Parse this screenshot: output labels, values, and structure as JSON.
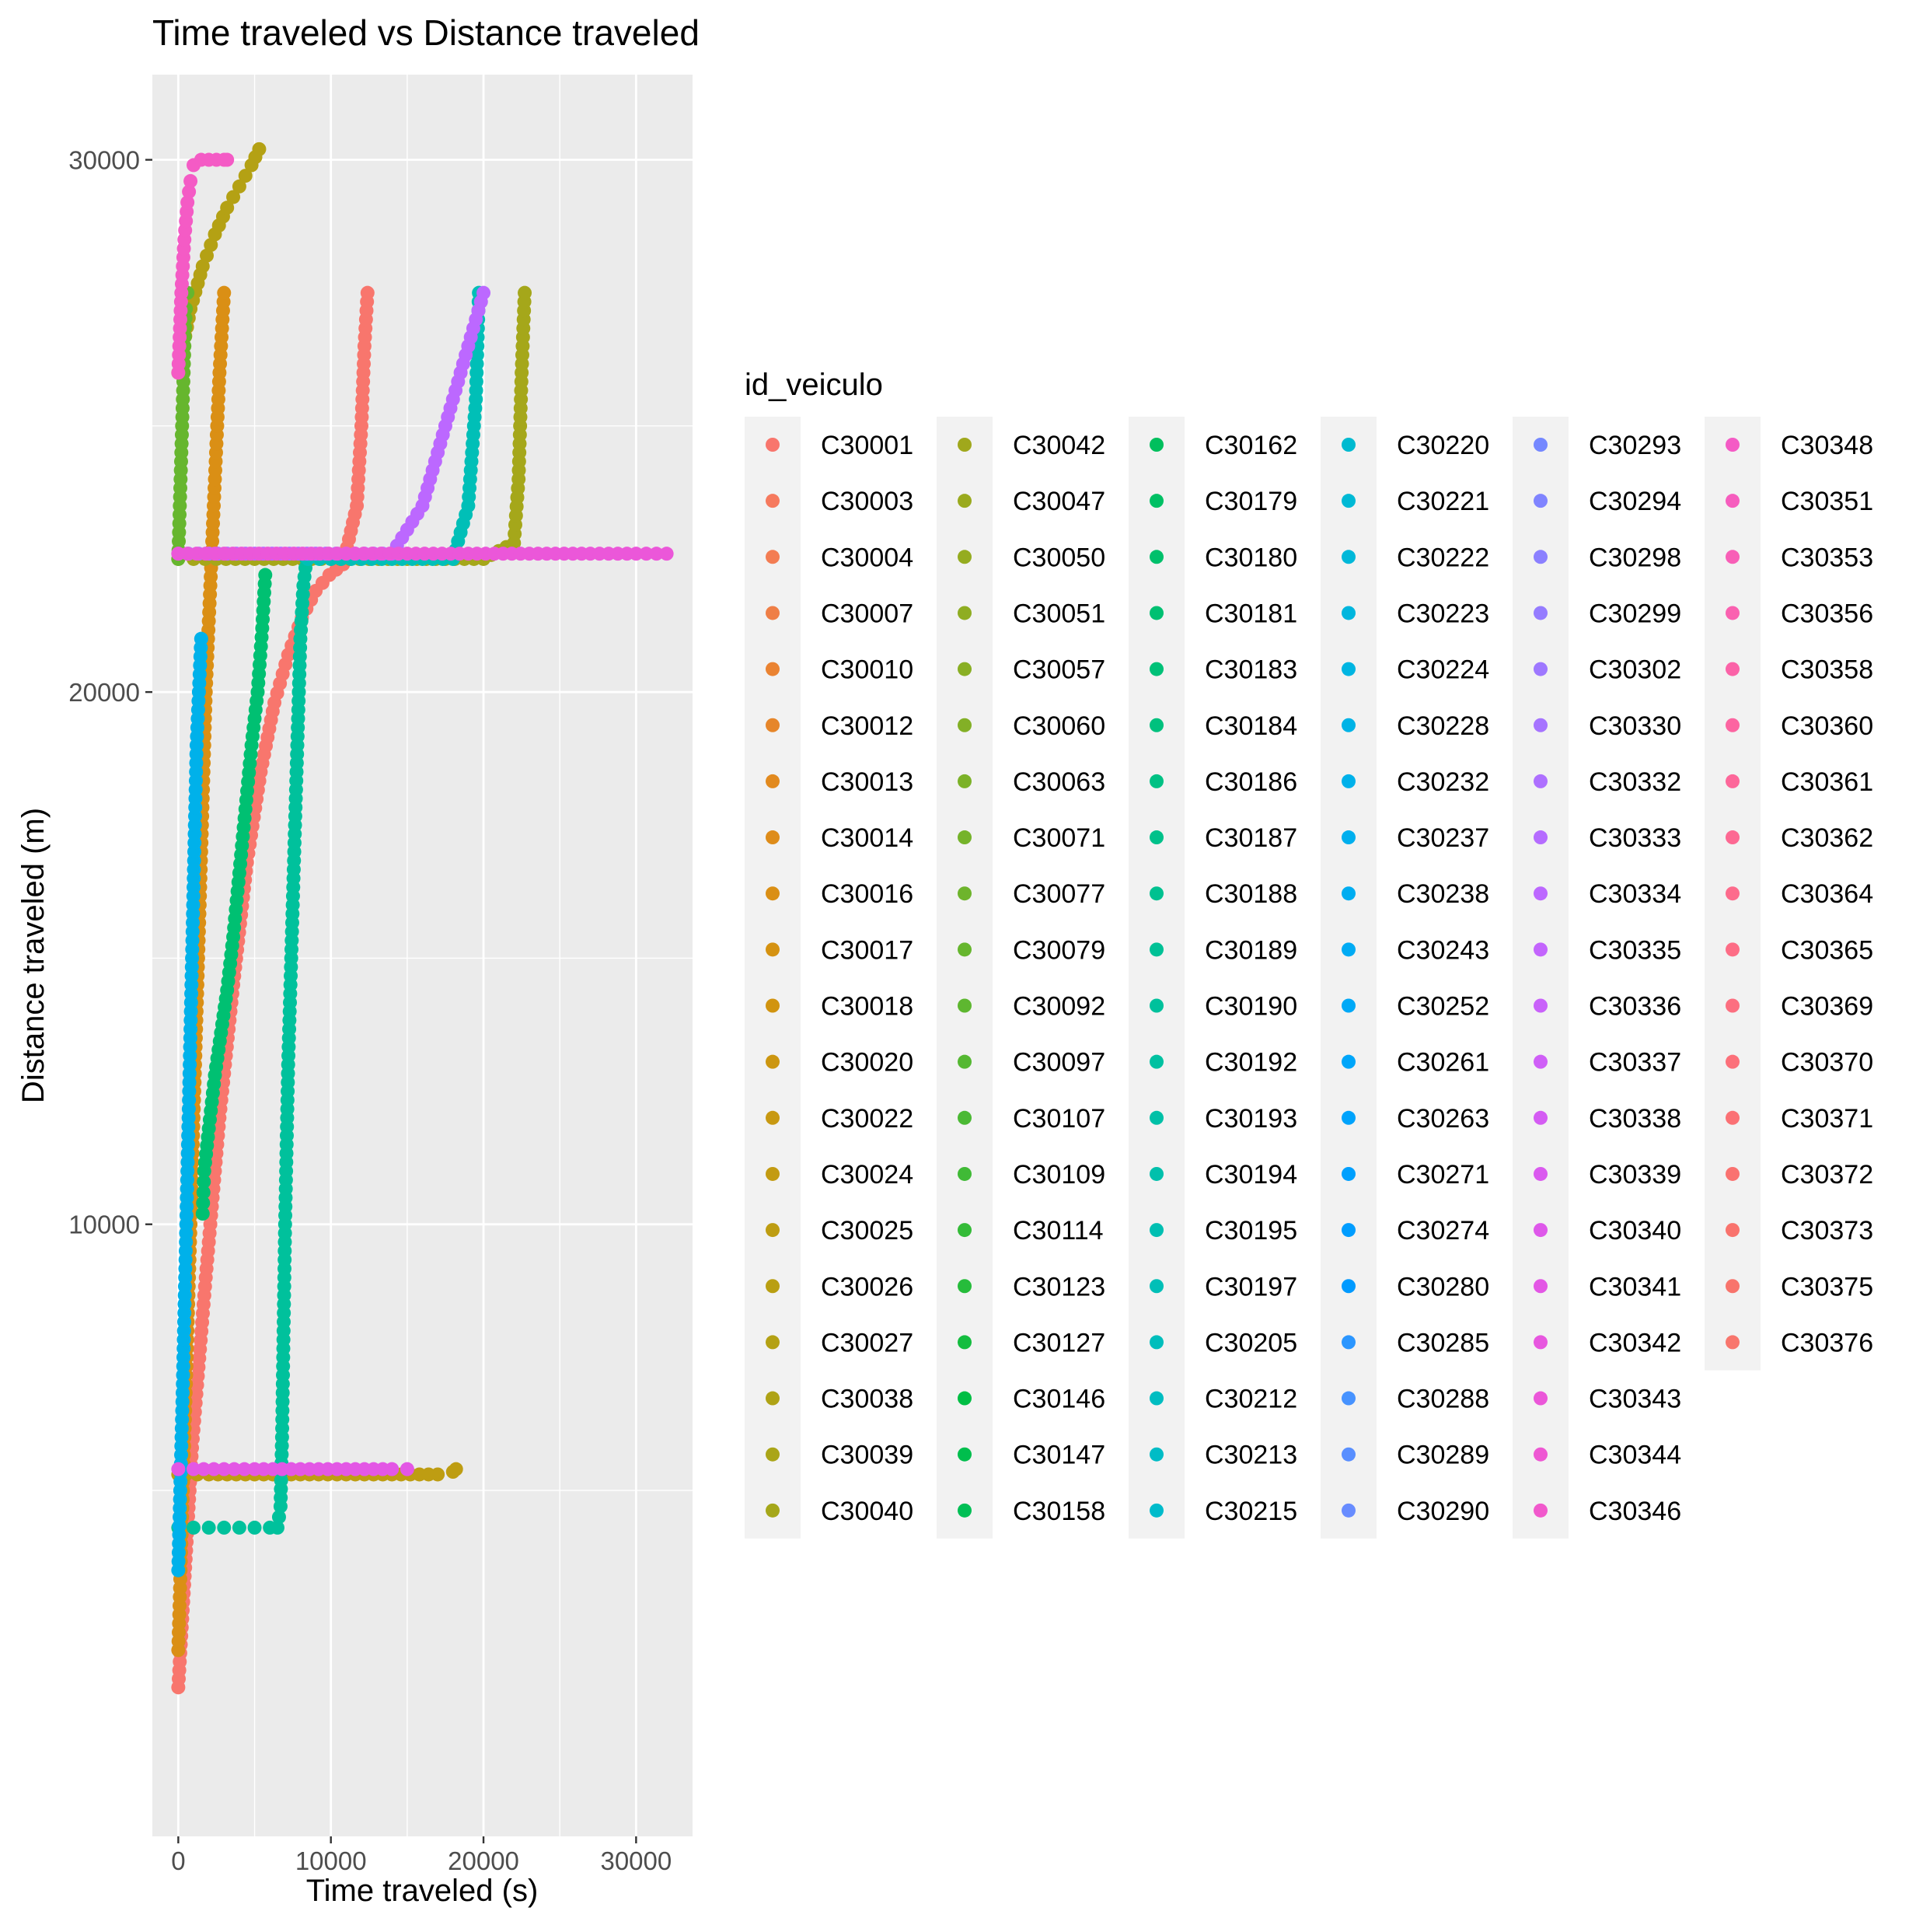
{
  "chart_data": {
    "type": "scatter",
    "title": "Time traveled vs Distance traveled",
    "xlabel": "Time traveled (s)",
    "ylabel": "Distance traveled (m)",
    "xlim": [
      -1700,
      33700
    ],
    "ylim": [
      -1500,
      31600
    ],
    "x_ticks": [
      0,
      10000,
      20000,
      30000
    ],
    "x_tick_labels": [
      "0",
      "10000",
      "20000",
      "30000"
    ],
    "y_ticks": [
      10000,
      20000,
      30000
    ],
    "y_tick_labels": [
      "10000",
      "20000",
      "30000"
    ],
    "grid": true,
    "legend": {
      "title": "id_veiculo",
      "position": "right",
      "columns": 7,
      "entries": [
        {
          "name": "C30001",
          "color": "#F8766D"
        },
        {
          "name": "C30003",
          "color": "#F67A5E"
        },
        {
          "name": "C30004",
          "color": "#F37D53"
        },
        {
          "name": "C30007",
          "color": "#EF7F47"
        },
        {
          "name": "C30010",
          "color": "#EA8332"
        },
        {
          "name": "C30012",
          "color": "#E6862A"
        },
        {
          "name": "C30013",
          "color": "#E28A1F"
        },
        {
          "name": "C30014",
          "color": "#DE8C1A"
        },
        {
          "name": "C30016",
          "color": "#DA8F15"
        },
        {
          "name": "C30017",
          "color": "#D59211"
        },
        {
          "name": "C30018",
          "color": "#D19410"
        },
        {
          "name": "C30020",
          "color": "#CC9610"
        },
        {
          "name": "C30022",
          "color": "#C89912"
        },
        {
          "name": "C30024",
          "color": "#C39B12"
        },
        {
          "name": "C30025",
          "color": "#BE9D12"
        },
        {
          "name": "C30026",
          "color": "#B99F12"
        },
        {
          "name": "C30027",
          "color": "#B4A114"
        },
        {
          "name": "C30038",
          "color": "#AFA316"
        },
        {
          "name": "C30039",
          "color": "#AAA518"
        },
        {
          "name": "C30040",
          "color": "#A5A71A"
        },
        {
          "name": "C30042",
          "color": "#A0A81C"
        },
        {
          "name": "C30047",
          "color": "#9AAA1E"
        },
        {
          "name": "C30050",
          "color": "#95AC20"
        },
        {
          "name": "C30051",
          "color": "#8FAD22"
        },
        {
          "name": "C30057",
          "color": "#89AF24"
        },
        {
          "name": "C30060",
          "color": "#83B026"
        },
        {
          "name": "C30063",
          "color": "#7CB228"
        },
        {
          "name": "C30071",
          "color": "#75B32A"
        },
        {
          "name": "C30077",
          "color": "#6EB42C"
        },
        {
          "name": "C30079",
          "color": "#66B62E"
        },
        {
          "name": "C30092",
          "color": "#5EB730"
        },
        {
          "name": "C30097",
          "color": "#55B832"
        },
        {
          "name": "C30107",
          "color": "#4BB934"
        },
        {
          "name": "C30109",
          "color": "#40BA36"
        },
        {
          "name": "C30114",
          "color": "#34BB38"
        },
        {
          "name": "C30123",
          "color": "#26BC3B"
        },
        {
          "name": "C30127",
          "color": "#14BD3F"
        },
        {
          "name": "C30146",
          "color": "#00BE44"
        },
        {
          "name": "C30147",
          "color": "#00BE4D"
        },
        {
          "name": "C30158",
          "color": "#00BF55"
        },
        {
          "name": "C30162",
          "color": "#00BF5D"
        },
        {
          "name": "C30179",
          "color": "#00C064"
        },
        {
          "name": "C30180",
          "color": "#00C06B"
        },
        {
          "name": "C30181",
          "color": "#00C072"
        },
        {
          "name": "C30183",
          "color": "#00C178"
        },
        {
          "name": "C30184",
          "color": "#00C17E"
        },
        {
          "name": "C30186",
          "color": "#00C184"
        },
        {
          "name": "C30187",
          "color": "#00C18A"
        },
        {
          "name": "C30188",
          "color": "#00C190"
        },
        {
          "name": "C30189",
          "color": "#00C196"
        },
        {
          "name": "C30190",
          "color": "#00C19C"
        },
        {
          "name": "C30192",
          "color": "#00C1A1"
        },
        {
          "name": "C30193",
          "color": "#00C0A7"
        },
        {
          "name": "C30194",
          "color": "#00C0AC"
        },
        {
          "name": "C30195",
          "color": "#00BFB2"
        },
        {
          "name": "C30197",
          "color": "#00BFB7"
        },
        {
          "name": "C30205",
          "color": "#00BEBC"
        },
        {
          "name": "C30212",
          "color": "#00BDC1"
        },
        {
          "name": "C30213",
          "color": "#00BCC6"
        },
        {
          "name": "C30215",
          "color": "#00BBCB"
        },
        {
          "name": "C30220",
          "color": "#00BAD0"
        },
        {
          "name": "C30221",
          "color": "#00B9D5"
        },
        {
          "name": "C30222",
          "color": "#00B8D9"
        },
        {
          "name": "C30223",
          "color": "#00B6DE"
        },
        {
          "name": "C30224",
          "color": "#00B5E2"
        },
        {
          "name": "C30228",
          "color": "#00B3E6"
        },
        {
          "name": "C30232",
          "color": "#00B1EA"
        },
        {
          "name": "C30237",
          "color": "#00AFEE"
        },
        {
          "name": "C30238",
          "color": "#00ADF1"
        },
        {
          "name": "C30243",
          "color": "#00ABF4"
        },
        {
          "name": "C30252",
          "color": "#00A9F7"
        },
        {
          "name": "C30261",
          "color": "#00A6FA"
        },
        {
          "name": "C30263",
          "color": "#00A3FC"
        },
        {
          "name": "C30271",
          "color": "#00A0FE"
        },
        {
          "name": "C30274",
          "color": "#009DFF"
        },
        {
          "name": "C30280",
          "color": "#009AFF"
        },
        {
          "name": "C30285",
          "color": "#2B96FF"
        },
        {
          "name": "C30288",
          "color": "#4793FF"
        },
        {
          "name": "C30289",
          "color": "#598FFF"
        },
        {
          "name": "C30290",
          "color": "#688CFF"
        },
        {
          "name": "C30293",
          "color": "#7588FF"
        },
        {
          "name": "C30294",
          "color": "#8084FF"
        },
        {
          "name": "C30298",
          "color": "#8B80FF"
        },
        {
          "name": "C30299",
          "color": "#957CFF"
        },
        {
          "name": "C30302",
          "color": "#9E78FF"
        },
        {
          "name": "C30330",
          "color": "#A674FF"
        },
        {
          "name": "C30332",
          "color": "#AE70FF"
        },
        {
          "name": "C30333",
          "color": "#B56CFF"
        },
        {
          "name": "C30334",
          "color": "#BC68FF"
        },
        {
          "name": "C30335",
          "color": "#C365FD"
        },
        {
          "name": "C30336",
          "color": "#C962FA"
        },
        {
          "name": "C30337",
          "color": "#CF5FF7"
        },
        {
          "name": "C30338",
          "color": "#D45CF3"
        },
        {
          "name": "C30339",
          "color": "#DA5AEF"
        },
        {
          "name": "C30340",
          "color": "#DE58EA"
        },
        {
          "name": "C30341",
          "color": "#E357E5"
        },
        {
          "name": "C30342",
          "color": "#E757DF"
        },
        {
          "name": "C30343",
          "color": "#EB57D9"
        },
        {
          "name": "C30344",
          "color": "#EE58D3"
        },
        {
          "name": "C30346",
          "color": "#F159CC"
        },
        {
          "name": "C30348",
          "color": "#F45BC5"
        },
        {
          "name": "C30351",
          "color": "#F65DBE"
        },
        {
          "name": "C30353",
          "color": "#F85FB7"
        },
        {
          "name": "C30356",
          "color": "#FA61B0"
        },
        {
          "name": "C30358",
          "color": "#FB63A8"
        },
        {
          "name": "C30360",
          "color": "#FC65A1"
        },
        {
          "name": "C30361",
          "color": "#FD679A"
        },
        {
          "name": "C30362",
          "color": "#FD6993"
        },
        {
          "name": "C30364",
          "color": "#FD6B8C"
        },
        {
          "name": "C30365",
          "color": "#FD6D86"
        },
        {
          "name": "C30369",
          "color": "#FC6F80"
        },
        {
          "name": "C30370",
          "color": "#FC707A"
        },
        {
          "name": "C30371",
          "color": "#FB7175"
        },
        {
          "name": "C30372",
          "color": "#FA7270"
        },
        {
          "name": "C30373",
          "color": "#F9736D"
        },
        {
          "name": "C30375",
          "color": "#F8746C"
        },
        {
          "name": "C30376",
          "color": "#F8766D"
        }
      ]
    },
    "series": [
      {
        "name": "C30001",
        "color": "#F8766D",
        "x": [
          0,
          900,
          1800,
          2700,
          3600,
          4500,
          5400,
          6300,
          7200,
          8100,
          9000,
          9900,
          10800,
          11700,
          12000,
          12200,
          12400
        ],
        "y": [
          1300,
          5800,
          9000,
          12000,
          14500,
          16800,
          18500,
          19800,
          20700,
          21400,
          21900,
          22200,
          22400,
          23500,
          25000,
          26500,
          27500
        ]
      },
      {
        "name": "C30016",
        "color": "#DA8F15",
        "x": [
          0,
          300,
          600,
          900,
          1200,
          1500,
          1800,
          2100,
          2400,
          2700,
          3000
        ],
        "y": [
          2000,
          5000,
          8000,
          11000,
          14000,
          17000,
          20000,
          22000,
          24000,
          26000,
          27500
        ]
      },
      {
        "name": "C30025",
        "color": "#BE9D12",
        "x": [
          0,
          500,
          2000,
          5000,
          8000,
          11000,
          14000,
          17000,
          18000,
          18200
        ],
        "y": [
          5300,
          5300,
          5300,
          5300,
          5300,
          5300,
          5300,
          5300,
          5350,
          5400
        ]
      },
      {
        "name": "C30027",
        "color": "#B4A114",
        "x": [
          0,
          800,
          1600,
          2400,
          3200,
          4000,
          4800,
          5300
        ],
        "y": [
          26000,
          27200,
          28000,
          28600,
          29100,
          29500,
          29900,
          30200
        ]
      },
      {
        "name": "C30040",
        "color": "#A5A71A",
        "x": [
          0,
          1000,
          2500,
          5000,
          10000,
          15000,
          20000,
          22000,
          22300,
          22500,
          22700
        ],
        "y": [
          22500,
          22500,
          22500,
          22500,
          22500,
          22500,
          22500,
          22800,
          24000,
          26000,
          27500
        ]
      },
      {
        "name": "C30079",
        "color": "#66B62E",
        "x": [
          0,
          100,
          200,
          300,
          400,
          500,
          600
        ],
        "y": [
          22500,
          23500,
          24500,
          25500,
          26500,
          27200,
          27500
        ]
      },
      {
        "name": "C30181",
        "color": "#00C072",
        "x": [
          1600,
          1700,
          2000,
          2400,
          2800,
          3200,
          3600,
          4000,
          4400,
          4800,
          5200,
          5500,
          5700
        ],
        "y": [
          10200,
          11000,
          11800,
          12800,
          13600,
          14400,
          15400,
          16600,
          17800,
          19000,
          20000,
          21200,
          22200
        ]
      },
      {
        "name": "C30190",
        "color": "#00C19C",
        "x": [
          0,
          1000,
          2000,
          3000,
          4000,
          5000,
          6000,
          6500,
          6700,
          6800,
          6900,
          7000,
          7200,
          7500,
          7800,
          8000,
          8200,
          8400
        ],
        "y": [
          4300,
          4300,
          4300,
          4300,
          4300,
          4300,
          4300,
          4300,
          4700,
          6000,
          8000,
          10000,
          13000,
          16000,
          19000,
          21000,
          22000,
          22500
        ]
      },
      {
        "name": "C30197",
        "color": "#00BFB7",
        "x": [
          8500,
          10000,
          12000,
          14000,
          16000,
          18000,
          19000,
          19500,
          19700
        ],
        "y": [
          22500,
          22500,
          22500,
          22500,
          22500,
          22500,
          23500,
          25500,
          27500
        ]
      },
      {
        "name": "C30232",
        "color": "#00B1EA",
        "x": [
          0,
          300,
          600,
          900,
          1200,
          1500
        ],
        "y": [
          3500,
          7000,
          11000,
          15000,
          19000,
          21000
        ]
      },
      {
        "name": "C30334",
        "color": "#BC68FF",
        "x": [
          0,
          2000,
          5000,
          9000,
          11000,
          14000,
          16000,
          17000,
          18000,
          19000,
          20000
        ],
        "y": [
          22600,
          22600,
          22600,
          22600,
          22600,
          22600,
          23500,
          24500,
          25500,
          26500,
          27500
        ]
      },
      {
        "name": "C30341",
        "color": "#E357E5",
        "x": [
          0,
          1000,
          3000,
          5000,
          8000,
          11000,
          14000,
          15000
        ],
        "y": [
          5400,
          5400,
          5400,
          5400,
          5400,
          5400,
          5400,
          5400
        ]
      },
      {
        "name": "C30343",
        "color": "#EB57D9",
        "x": [
          0,
          3000,
          7000,
          11000,
          15000,
          19000,
          23000,
          27000,
          30000,
          32000
        ],
        "y": [
          22600,
          22600,
          22600,
          22600,
          22600,
          22600,
          22600,
          22600,
          22600,
          22600
        ]
      },
      {
        "name": "C30348",
        "color": "#F45BC5",
        "x": [
          0,
          200,
          400,
          600,
          800,
          1000,
          1500,
          2000,
          2500,
          3000,
          3200
        ],
        "y": [
          26000,
          27500,
          28500,
          29200,
          29600,
          29900,
          30000,
          30000,
          30000,
          30000,
          30000
        ]
      }
    ]
  }
}
